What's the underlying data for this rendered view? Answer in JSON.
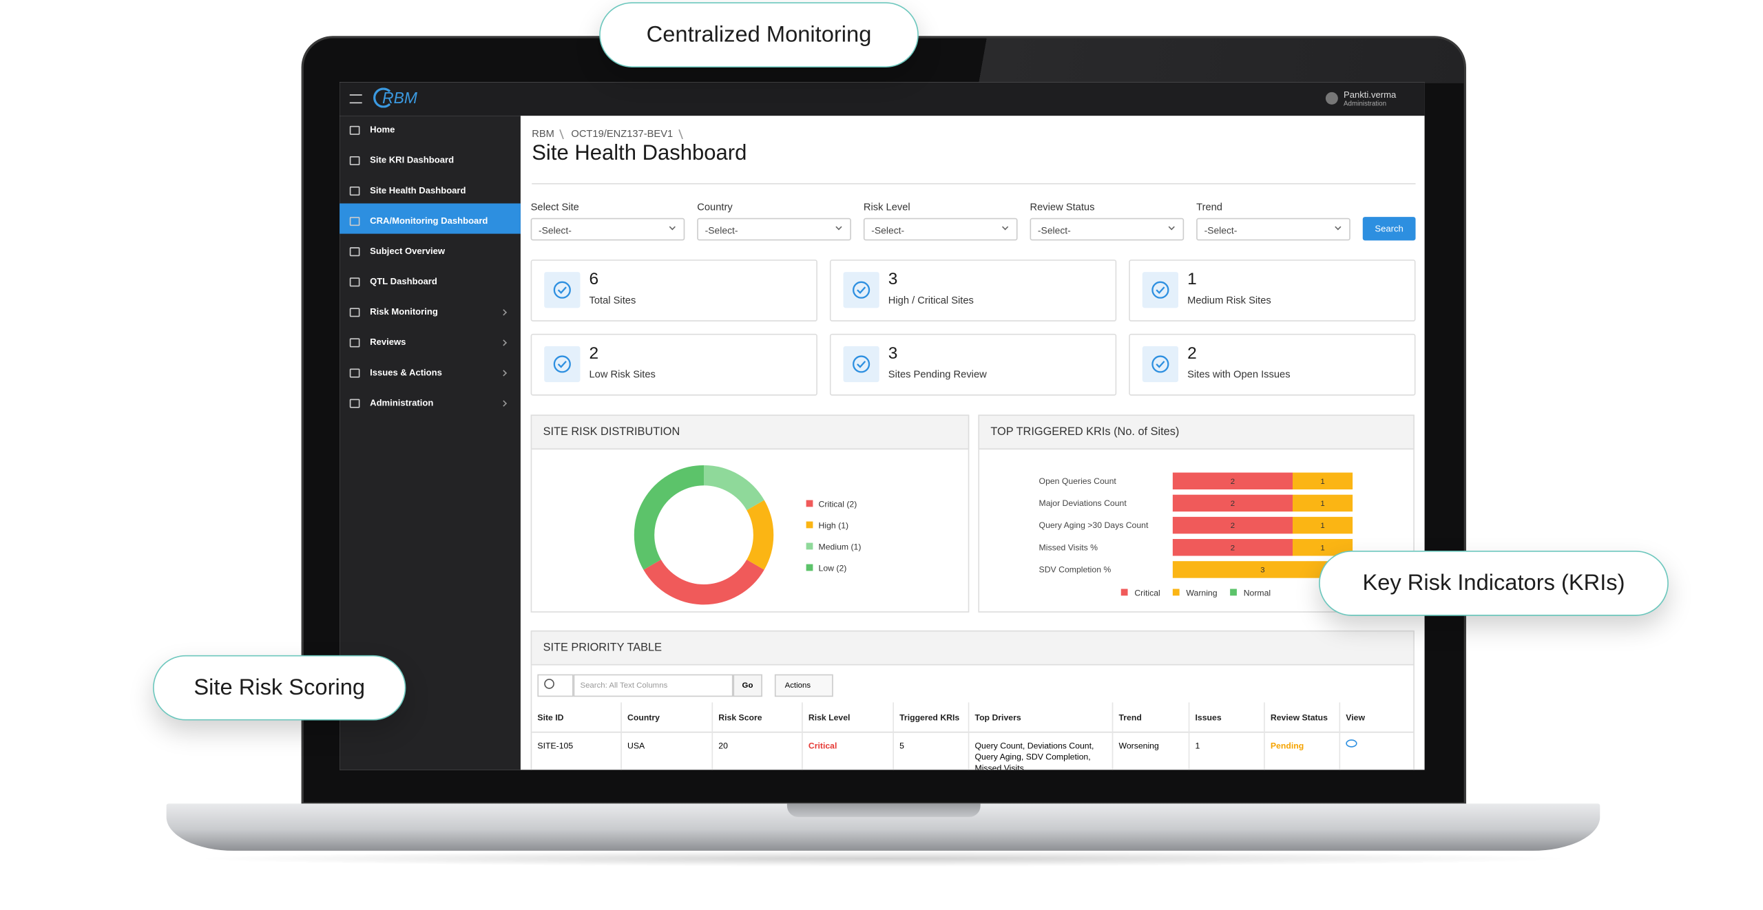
{
  "callouts": [
    "Centralized Monitoring",
    "Key Risk Indicators (KRIs)",
    "Site Risk Scoring"
  ],
  "header": {
    "logo": "RBM",
    "user": "Pankti.verma",
    "role": "Administration"
  },
  "nav": [
    {
      "label": "Home"
    },
    {
      "label": "Site KRI Dashboard"
    },
    {
      "label": "Site Health Dashboard",
      "active": true
    },
    {
      "label": "CRA/Monitoring Dashboard"
    },
    {
      "label": "Subject Overview"
    },
    {
      "label": "QTL Dashboard"
    },
    {
      "label": "Risk Monitoring",
      "expandable": true
    },
    {
      "label": "Reviews",
      "expandable": true
    },
    {
      "label": "Issues & Actions",
      "expandable": true
    },
    {
      "label": "Administration",
      "expandable": true
    }
  ],
  "breadcrumb": [
    "RBM",
    "OCT19/ENZ137-BEV1"
  ],
  "title": "Site Health Dashboard",
  "filters": [
    {
      "label": "Select Site",
      "placeholder": "-Select-"
    },
    {
      "label": "Country",
      "placeholder": "-Select-"
    },
    {
      "label": "Risk Level",
      "placeholder": "-Select-"
    },
    {
      "label": "Review Status",
      "placeholder": "-Select-"
    },
    {
      "label": "Trend",
      "placeholder": "-Select-"
    }
  ],
  "search_button": "Search",
  "kpis": [
    {
      "value": 6,
      "label": "Total Sites"
    },
    {
      "value": 3,
      "label": "High / Critical Sites"
    },
    {
      "value": 1,
      "label": "Medium Risk Sites"
    },
    {
      "value": 2,
      "label": "Low Risk Sites"
    },
    {
      "value": 3,
      "label": "Sites Pending Review"
    },
    {
      "value": 2,
      "label": "Sites with Open Issues"
    }
  ],
  "chart_data": [
    {
      "type": "pie",
      "title": "SITE RISK DISTRIBUTION",
      "categories": [
        "Critical",
        "High",
        "Medium",
        "Low"
      ],
      "legend_labels": [
        "Critical (2)",
        "High (1)",
        "Medium (1)",
        "Low (2)"
      ],
      "values": [
        2,
        1,
        1,
        2
      ],
      "colors": [
        "#f05a5a",
        "#fbb514",
        "#8fd99a",
        "#5cc36a"
      ]
    },
    {
      "type": "bar",
      "orientation": "horizontal",
      "stacked": true,
      "title": "TOP TRIGGERED KRIs (No. of Sites)",
      "categories": [
        "Open Queries Count",
        "Major Deviations Count",
        "Query Aging >30 Days Count",
        "Missed Visits %",
        "SDV Completion %"
      ],
      "series": [
        {
          "name": "Critical",
          "color": "#f05a5a",
          "values": [
            2,
            2,
            2,
            2,
            null
          ]
        },
        {
          "name": "Warning",
          "color": "#fbb514",
          "values": [
            1,
            1,
            1,
            1,
            3
          ]
        },
        {
          "name": "Normal",
          "color": "#5cc36a",
          "values": [
            null,
            null,
            null,
            null,
            null
          ]
        }
      ]
    }
  ],
  "table": {
    "title": "SITE PRIORITY TABLE",
    "search_placeholder": "Search: All Text Columns",
    "go": "Go",
    "actions": "Actions",
    "columns": [
      "Site ID",
      "Country",
      "Risk Score",
      "Risk Level",
      "Triggered KRIs",
      "Top Drivers",
      "Trend",
      "Issues",
      "Review Status",
      "View"
    ],
    "rows": [
      [
        "SITE-105",
        "USA",
        20,
        "Critical",
        5,
        "Query Count, Deviations Count, Query Aging, SDV Completion, Missed Visits",
        "Worsening",
        1,
        "Pending"
      ]
    ]
  }
}
